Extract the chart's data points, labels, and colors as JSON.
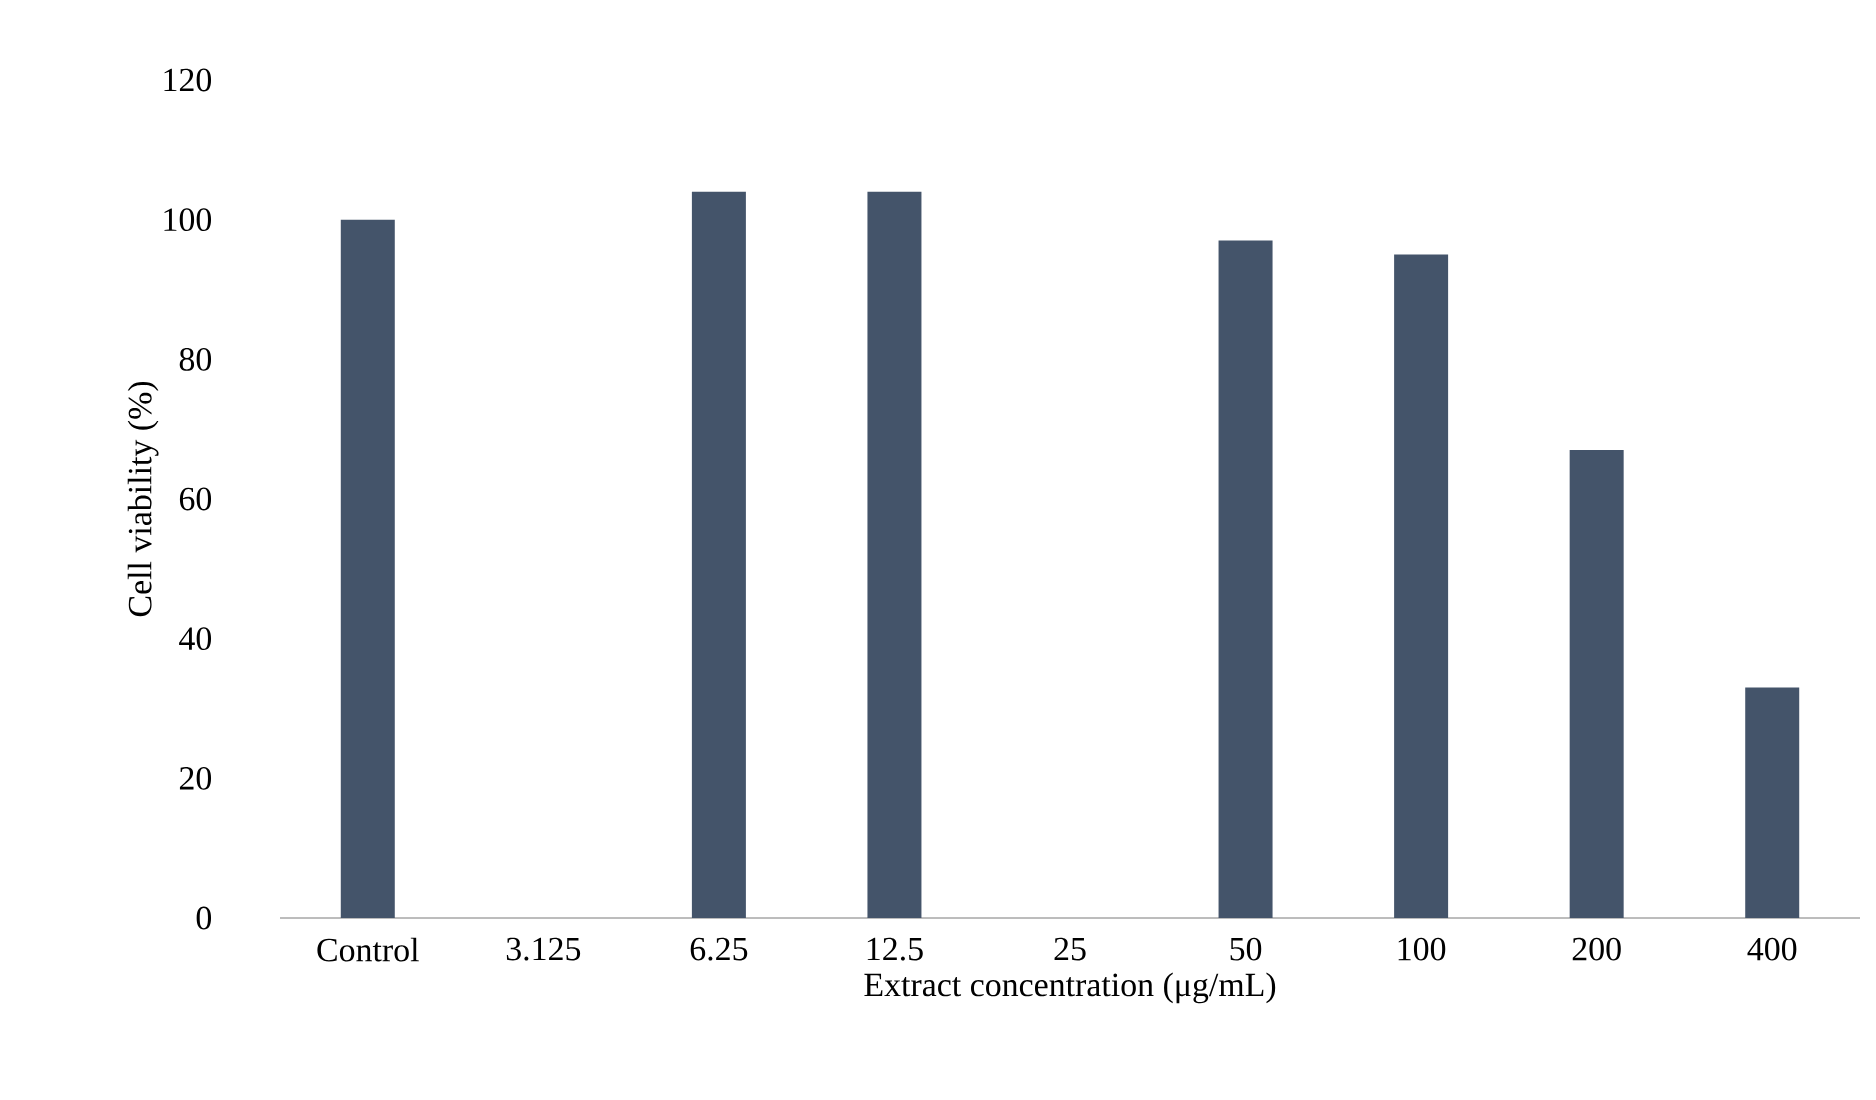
{
  "chart_data": {
    "type": "bar",
    "xlabel": "Extract concentration (μg/mL)",
    "ylabel": "Cell viability  (%)",
    "categories": [
      "Control",
      "3.125",
      "6.25",
      "12.5",
      "25",
      "50",
      "100",
      "200",
      "400"
    ],
    "values": [
      100,
      null,
      104,
      104,
      null,
      97,
      95,
      67,
      33
    ],
    "color": "#44546a",
    "ylim": [
      0,
      120
    ],
    "yticks": [
      0,
      20,
      40,
      60,
      80,
      100,
      120
    ]
  }
}
